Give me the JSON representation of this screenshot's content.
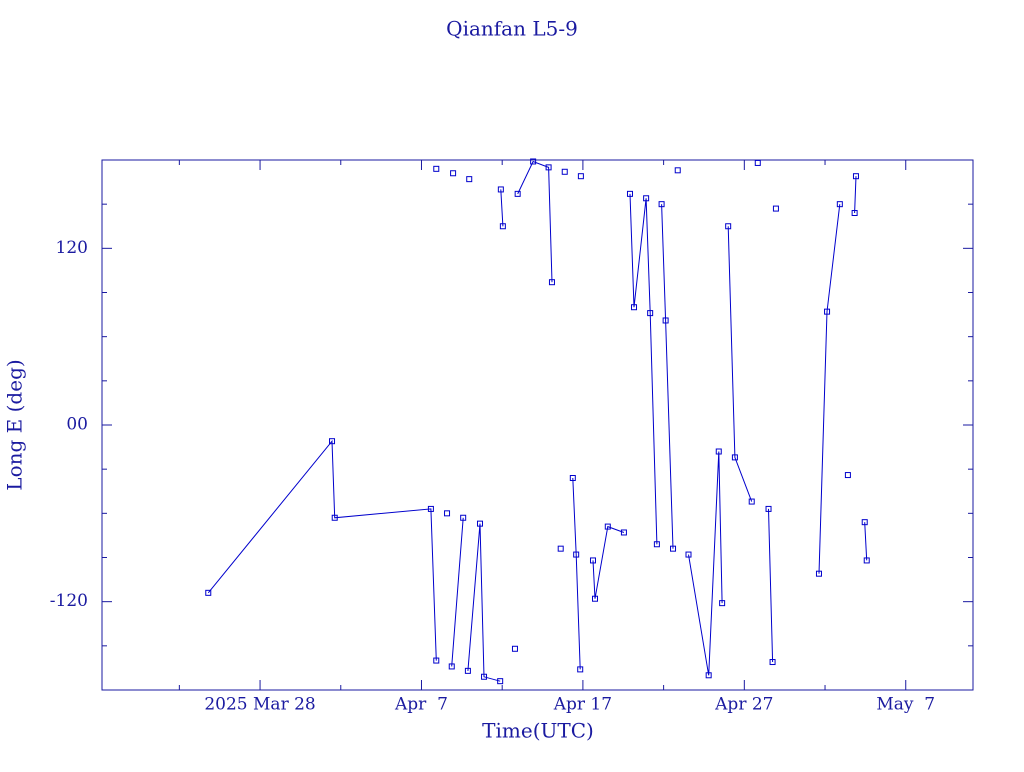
{
  "chart_data": {
    "type": "line",
    "title": "Qianfan L5-9",
    "x_label": "Time(UTC)",
    "y_label": "Long E (deg)",
    "xlim": [
      "2025-03-18T05:00",
      "2025-05-11T04:00"
    ],
    "xticks": [
      {
        "value": "2025-03-28T00:00",
        "label": "2025 Mar 28"
      },
      {
        "value": "2025-04-07T00:00",
        "label": "Apr  7"
      },
      {
        "value": "2025-04-17T00:00",
        "label": "Apr 17"
      },
      {
        "value": "2025-04-27T00:00",
        "label": "Apr 27"
      },
      {
        "value": "2025-05-07T00:00",
        "label": "May  7"
      }
    ],
    "ylim": [
      -180,
      180
    ],
    "yticks": [
      -120,
      {
        "value": 0,
        "label": "00"
      },
      120
    ],
    "series": [
      {
        "color": "#0000cc",
        "x": [
          "2025-03-24T19:00",
          "2025-04-01T11:00",
          "2025-04-01T15:00",
          "2025-04-07T14:00",
          "2025-04-07T22:00",
          null,
          "2025-04-07T22:00",
          null,
          "2025-04-08T14:00",
          null,
          "2025-04-08T23:00",
          null,
          "2025-04-08T21:00",
          "2025-04-09T14:00",
          null,
          "2025-04-09T23:00",
          null,
          "2025-04-09T21:00",
          "2025-04-10T15:00",
          "2025-04-10T21:00",
          "2025-04-11T21:00",
          null,
          "2025-04-11T22:00",
          "2025-04-12T01:00",
          null,
          "2025-04-12T19:00",
          null,
          "2025-04-12T23:00",
          "2025-04-13T22:00",
          "2025-04-14T21:00",
          "2025-04-15T02:00",
          null,
          "2025-04-15T15:00",
          null,
          "2025-04-15T21:00",
          null,
          "2025-04-16T09:00",
          "2025-04-16T14:00",
          "2025-04-16T20:00",
          null,
          "2025-04-16T21:00",
          null,
          "2025-04-17T15:00",
          "2025-04-17T18:00",
          "2025-04-18T13:00",
          "2025-04-19T13:00",
          null,
          "2025-04-19T22:00",
          "2025-04-20T04:00",
          "2025-04-20T22:00",
          "2025-04-21T04:00",
          "2025-04-21T14:00",
          null,
          "2025-04-21T21:00",
          "2025-04-22T03:00",
          "2025-04-22T14:00",
          null,
          "2025-04-22T21:00",
          null,
          "2025-04-23T13:00",
          "2025-04-24T19:00",
          "2025-04-25T10:00",
          "2025-04-25T15:00",
          null,
          "2025-04-26T00:00",
          "2025-04-26T10:00",
          "2025-04-27T11:00",
          null,
          "2025-04-27T20:00",
          null,
          "2025-04-28T12:00",
          "2025-04-28T18:00",
          null,
          "2025-04-28T23:00",
          null,
          "2025-05-01T15:00",
          "2025-05-02T03:00",
          "2025-05-02T22:00",
          null,
          "2025-05-03T10:00",
          null,
          "2025-05-03T20:00",
          "2025-05-03T22:00",
          null,
          "2025-05-04T11:00",
          "2025-05-04T14:00"
        ],
        "values": [
          -114,
          -11,
          -63,
          -57,
          -160,
          null,
          174,
          null,
          -60,
          null,
          171,
          null,
          -164,
          -63,
          null,
          167,
          null,
          -167,
          -67,
          -171,
          -174,
          null,
          160,
          135,
          null,
          -152,
          null,
          157,
          179,
          175,
          97,
          null,
          -84,
          null,
          172,
          null,
          -36,
          -88,
          -166,
          null,
          169,
          null,
          -92,
          -118,
          -69,
          -73,
          null,
          157,
          80,
          154,
          76,
          -81,
          null,
          150,
          71,
          -84,
          null,
          173,
          null,
          -88,
          -170,
          -18,
          -121,
          null,
          135,
          -22,
          -52,
          null,
          178,
          null,
          -57,
          -161,
          null,
          147,
          null,
          -101,
          77,
          150,
          null,
          -34,
          null,
          144,
          169,
          null,
          -66,
          -92
        ]
      }
    ]
  }
}
